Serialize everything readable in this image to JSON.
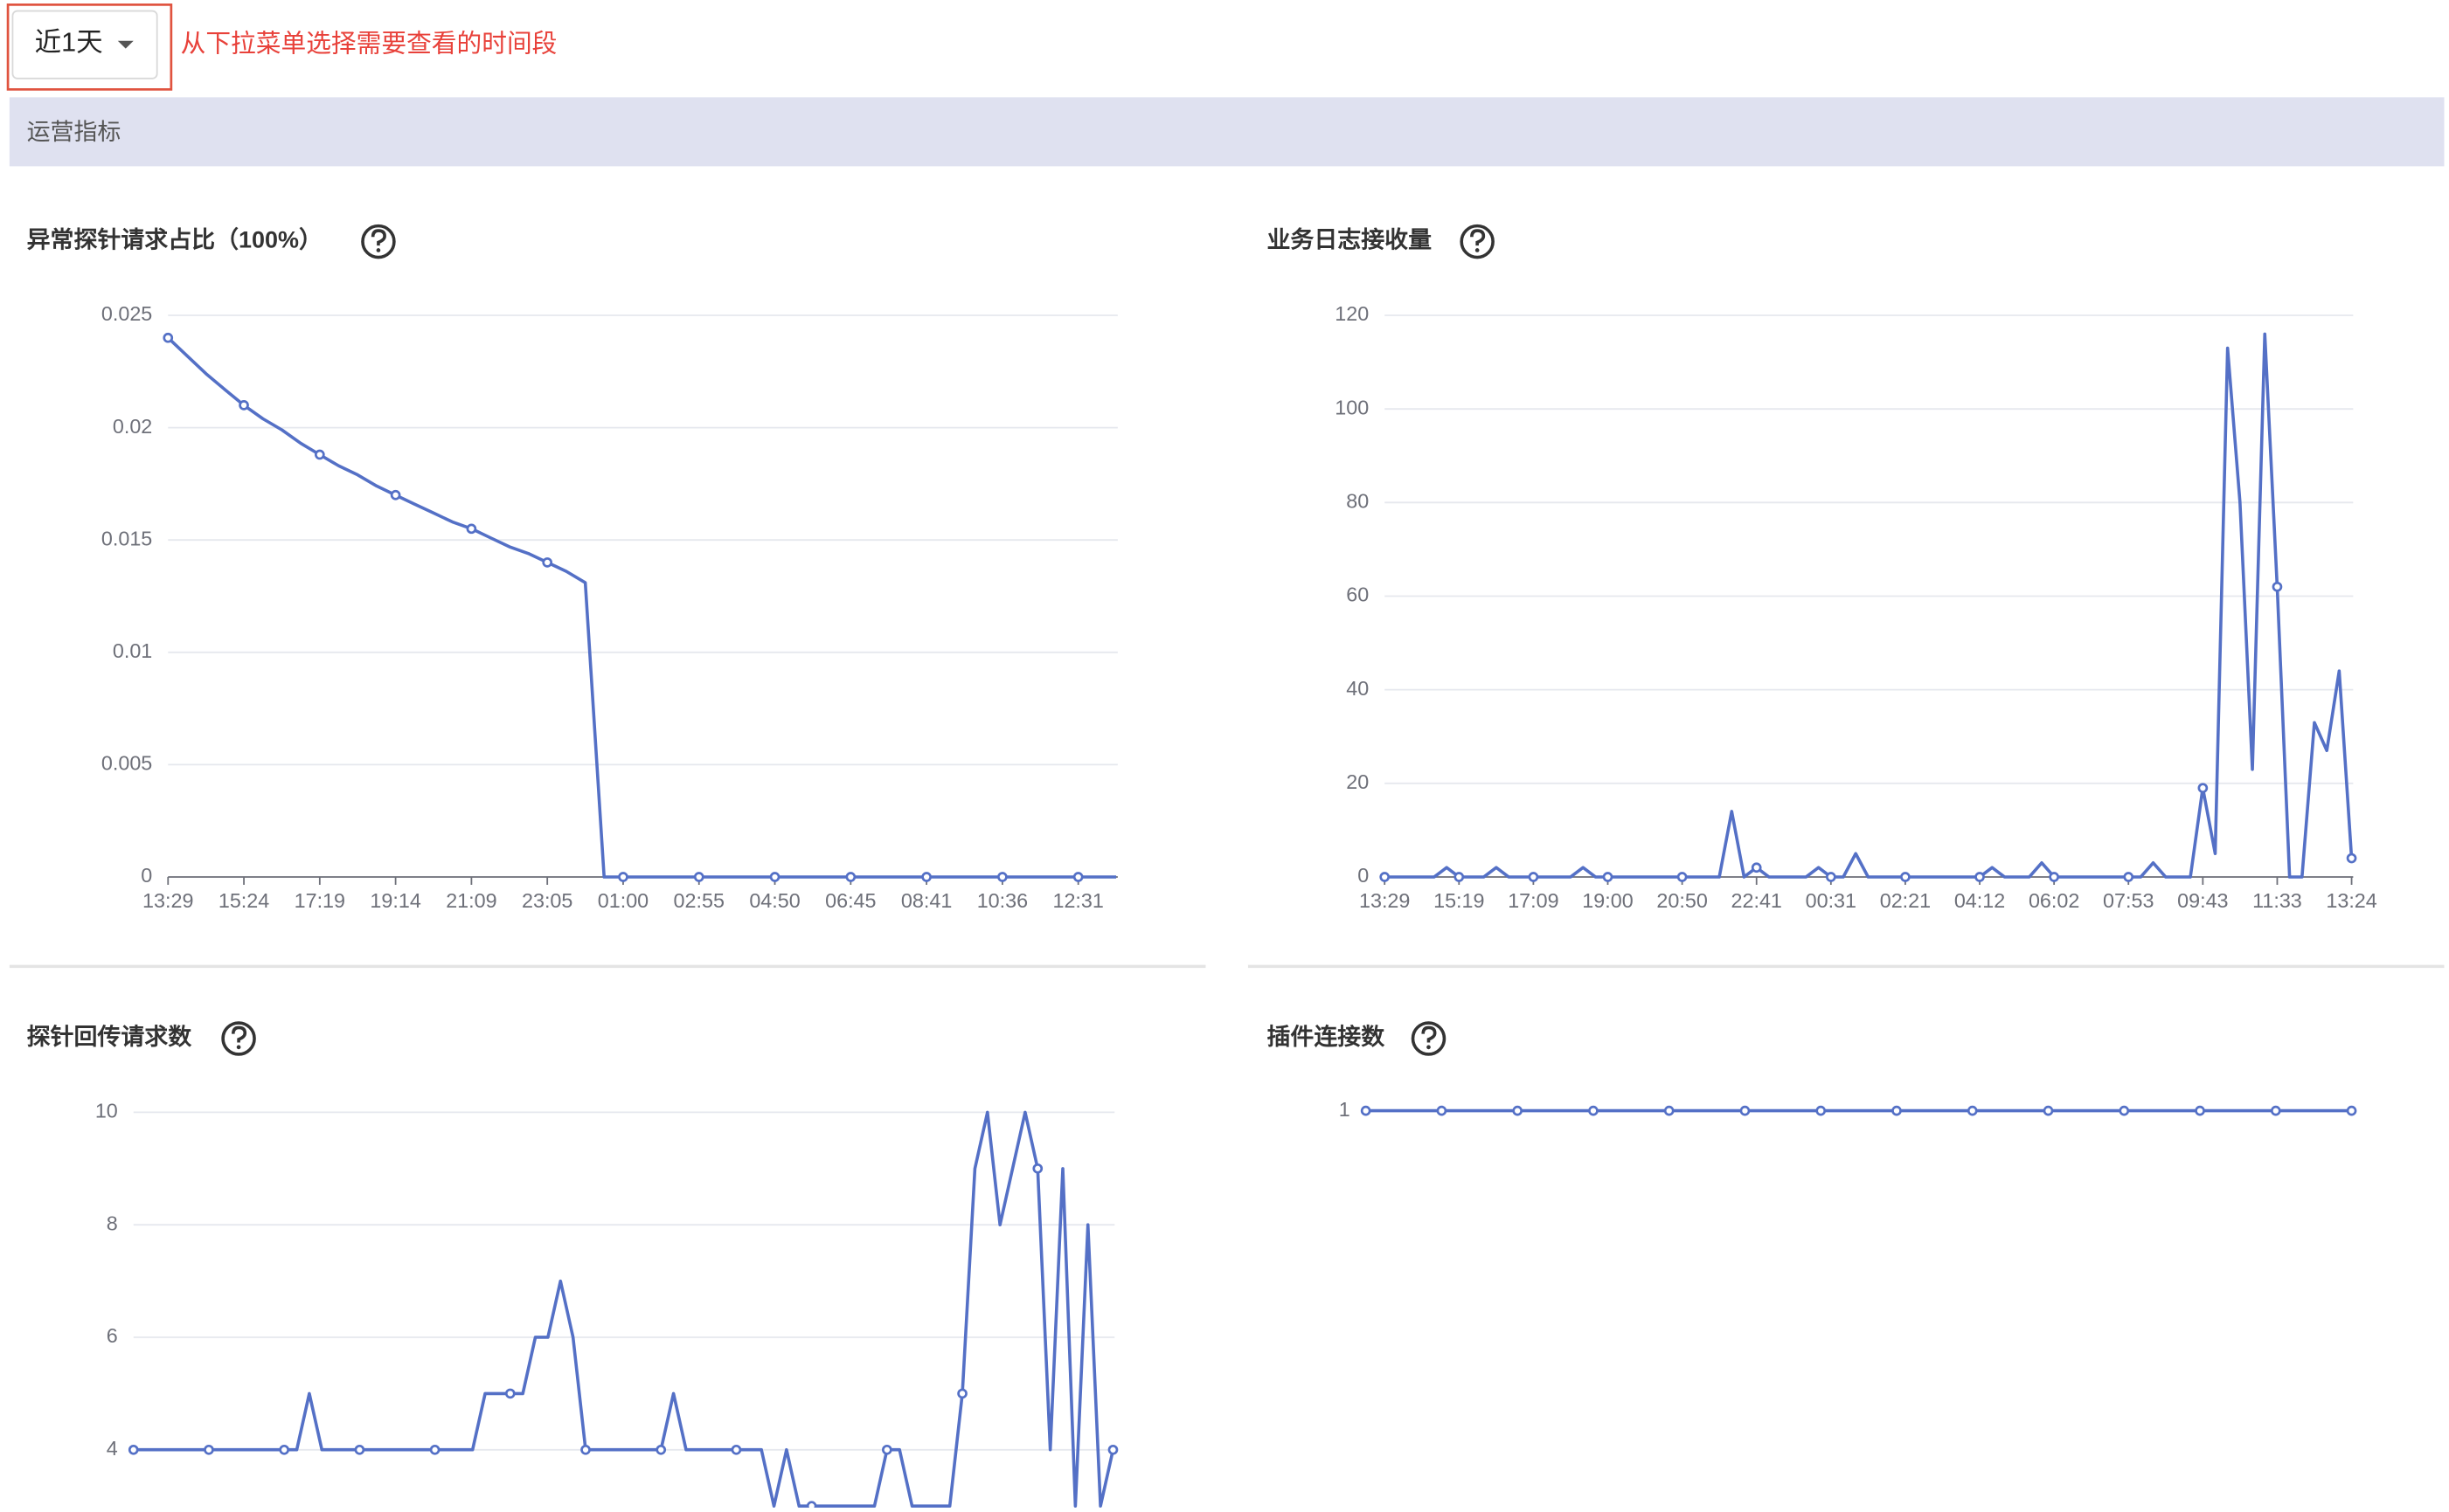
{
  "dropdown": "近1天",
  "annotation": "从下拉菜单选择需要查看的时间段",
  "section_title": "运营指标",
  "chart_data": [
    {
      "type": "line",
      "title": "异常探针请求占比（100%）",
      "color": "#5470c6",
      "grid": true,
      "ylim": [
        0,
        0.025
      ],
      "yticks": [
        0,
        0.005,
        0.01,
        0.015,
        0.02,
        0.025
      ],
      "categories": [
        "13:29",
        null,
        null,
        null,
        "15:24",
        null,
        null,
        null,
        "17:19",
        null,
        null,
        null,
        "19:14",
        null,
        null,
        null,
        "21:09",
        null,
        null,
        null,
        "23:05",
        null,
        null,
        null,
        "01:00",
        null,
        null,
        null,
        "02:55",
        null,
        null,
        null,
        "04:50",
        null,
        null,
        null,
        "06:45",
        null,
        null,
        null,
        "08:41",
        null,
        null,
        null,
        "10:36",
        null,
        null,
        null,
        "12:31",
        null,
        null
      ],
      "values": [
        0.024,
        0.0232,
        0.0224,
        0.0217,
        0.021,
        0.0204,
        0.0199,
        0.0193,
        0.0188,
        0.0183,
        0.0179,
        0.0174,
        0.017,
        0.0166,
        0.0162,
        0.0158,
        0.0155,
        0.0151,
        0.0147,
        0.0144,
        0.014,
        0.0136,
        0.0131,
        0,
        0,
        0,
        0,
        0,
        0,
        0,
        0,
        0,
        0,
        0,
        0,
        0,
        0,
        0,
        0,
        0,
        0,
        0,
        0,
        0,
        0,
        0,
        0,
        0,
        0,
        0,
        0
      ]
    },
    {
      "type": "line",
      "title": "业务日志接收量",
      "color": "#5470c6",
      "grid": true,
      "ylim": [
        0,
        120
      ],
      "yticks": [
        0,
        20,
        40,
        60,
        80,
        100,
        120
      ],
      "categories": [
        "13:29",
        null,
        null,
        null,
        null,
        null,
        "15:19",
        null,
        null,
        null,
        null,
        null,
        "17:09",
        null,
        null,
        null,
        null,
        null,
        "19:00",
        null,
        null,
        null,
        null,
        null,
        "20:50",
        null,
        null,
        null,
        null,
        null,
        "22:41",
        null,
        null,
        null,
        null,
        null,
        "00:31",
        null,
        null,
        null,
        null,
        null,
        "02:21",
        null,
        null,
        null,
        null,
        null,
        "04:12",
        null,
        null,
        null,
        null,
        null,
        "06:02",
        null,
        null,
        null,
        null,
        null,
        "07:53",
        null,
        null,
        null,
        null,
        null,
        "09:43",
        null,
        null,
        null,
        null,
        null,
        "11:33",
        null,
        null,
        null,
        null,
        null,
        "13:24"
      ],
      "values": [
        0,
        0,
        0,
        0,
        0,
        2,
        0,
        0,
        0,
        2,
        0,
        0,
        0,
        0,
        0,
        0,
        2,
        0,
        0,
        0,
        0,
        0,
        0,
        0,
        0,
        0,
        0,
        0,
        14,
        0,
        2,
        0,
        0,
        0,
        0,
        2,
        0,
        0,
        5,
        0,
        0,
        0,
        0,
        0,
        0,
        0,
        0,
        0,
        0,
        2,
        0,
        0,
        0,
        3,
        0,
        0,
        0,
        0,
        0,
        0,
        0,
        0,
        3,
        0,
        0,
        0,
        19,
        5,
        113,
        80,
        23,
        116,
        62,
        0,
        0,
        33,
        27,
        44,
        4
      ]
    },
    {
      "type": "line",
      "title": "探针回传请求数",
      "color": "#5470c6",
      "grid": true,
      "ylim": [
        3,
        10
      ],
      "yticks": [
        4,
        6,
        8,
        10
      ],
      "values": [
        4,
        4,
        4,
        4,
        4,
        4,
        4,
        4,
        4,
        4,
        4,
        4,
        4,
        4,
        5,
        4,
        4,
        4,
        4,
        4,
        4,
        4,
        4,
        4,
        4,
        4,
        4,
        4,
        5,
        5,
        5,
        5,
        6,
        6,
        7,
        6,
        4,
        4,
        4,
        4,
        4,
        4,
        4,
        5,
        4,
        4,
        4,
        4,
        4,
        4,
        4,
        3,
        4,
        3,
        3,
        3,
        3,
        3,
        3,
        3,
        4,
        4,
        3,
        3,
        3,
        3,
        5,
        9,
        10,
        8,
        9,
        10,
        9,
        4,
        9,
        3,
        8,
        3,
        4
      ]
    },
    {
      "type": "line",
      "title": "插件连接数",
      "color": "#5470c6",
      "grid": true,
      "ylim": [
        0,
        1
      ],
      "yticks": [
        1
      ],
      "values": [
        1,
        1,
        1,
        1,
        1,
        1,
        1,
        1,
        1,
        1,
        1,
        1,
        1,
        1
      ]
    }
  ]
}
